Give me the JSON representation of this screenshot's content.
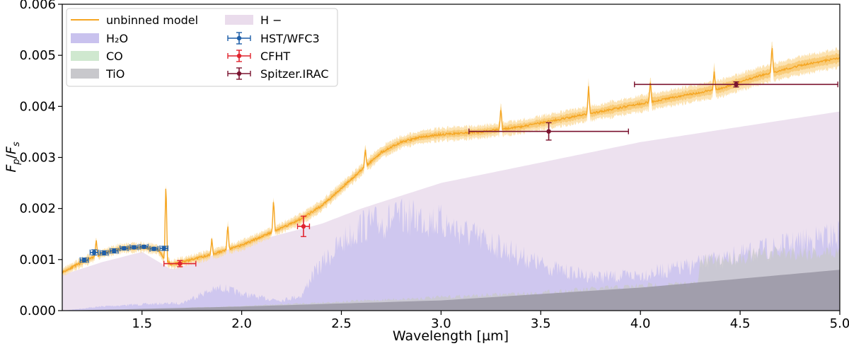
{
  "chart_data": {
    "type": "line",
    "xlabel": "Wavelength [µm]",
    "ylabel": "F_p/F_s",
    "xlim": [
      1.1,
      5.0
    ],
    "ylim": [
      0.0,
      0.006
    ],
    "xticks": [
      1.5,
      2.0,
      2.5,
      3.0,
      3.5,
      4.0,
      4.5,
      5.0
    ],
    "xtick_labels": [
      "1.5",
      "2.0",
      "2.5",
      "3.0",
      "3.5",
      "4.0",
      "4.5",
      "5.0"
    ],
    "yticks": [
      0.0,
      0.001,
      0.002,
      0.003,
      0.004,
      0.005,
      0.006
    ],
    "ytick_labels": [
      "0.000",
      "0.001",
      "0.002",
      "0.003",
      "0.004",
      "0.005",
      "0.006"
    ],
    "legend_position": "top-left",
    "legend": [
      {
        "key": "model",
        "label": "unbinned model",
        "kind": "line",
        "color": "#f5a623"
      },
      {
        "key": "h2o",
        "label": "H₂O",
        "kind": "patch",
        "color": "#c9c2ee"
      },
      {
        "key": "co",
        "label": "CO",
        "kind": "patch",
        "color": "#cfe8cf"
      },
      {
        "key": "tio",
        "label": "TiO",
        "kind": "patch",
        "color": "#c8c8cc"
      },
      {
        "key": "hminus",
        "label": "H −",
        "kind": "patch",
        "color": "#eadcec"
      },
      {
        "key": "hst",
        "label": "HST/WFC3",
        "kind": "errorbar",
        "color": "#1f5fa8"
      },
      {
        "key": "cfht",
        "label": "CFHT",
        "kind": "errorbar",
        "color": "#e0242e"
      },
      {
        "key": "spitzer",
        "label": "Spitzer.IRAC",
        "kind": "errorbar",
        "color": "#7b1430"
      }
    ],
    "series": {
      "model": {
        "name": "unbinned model",
        "color": "#f5a623",
        "x": [
          1.1,
          1.2,
          1.3,
          1.4,
          1.5,
          1.58,
          1.62,
          1.65,
          1.75,
          1.85,
          2.0,
          2.1,
          2.2,
          2.3,
          2.4,
          2.5,
          2.6,
          2.7,
          2.8,
          2.9,
          3.0,
          3.2,
          3.4,
          3.6,
          3.8,
          4.0,
          4.2,
          4.4,
          4.6,
          4.8,
          5.0
        ],
        "y": [
          0.00075,
          0.00095,
          0.00112,
          0.00122,
          0.00124,
          0.0012,
          0.00098,
          0.0009,
          0.001,
          0.0011,
          0.00128,
          0.00145,
          0.00162,
          0.0018,
          0.00205,
          0.0024,
          0.00275,
          0.0031,
          0.0033,
          0.0034,
          0.00345,
          0.0035,
          0.0036,
          0.00375,
          0.0039,
          0.00405,
          0.0042,
          0.00435,
          0.0046,
          0.0048,
          0.00495
        ],
        "spikes": [
          {
            "x": 1.27,
            "y": 0.0014
          },
          {
            "x": 1.62,
            "y": 0.0026
          },
          {
            "x": 1.85,
            "y": 0.0014
          },
          {
            "x": 1.93,
            "y": 0.0017
          },
          {
            "x": 2.16,
            "y": 0.0022
          },
          {
            "x": 2.62,
            "y": 0.0032
          },
          {
            "x": 3.3,
            "y": 0.004
          },
          {
            "x": 3.74,
            "y": 0.0044
          },
          {
            "x": 4.05,
            "y": 0.0045
          },
          {
            "x": 4.37,
            "y": 0.0047
          },
          {
            "x": 4.66,
            "y": 0.0052
          }
        ]
      },
      "hminus": {
        "name": "H −",
        "color": "#eadcec",
        "x": [
          1.1,
          1.3,
          1.5,
          1.65,
          1.8,
          2.0,
          2.2,
          2.4,
          2.6,
          3.0,
          3.5,
          4.0,
          4.5,
          5.0
        ],
        "y": [
          0.0007,
          0.00095,
          0.00115,
          0.0008,
          0.001,
          0.0013,
          0.0015,
          0.0017,
          0.002,
          0.0025,
          0.0029,
          0.0033,
          0.0036,
          0.0039
        ]
      },
      "h2o": {
        "name": "H₂O",
        "color": "#c9c2ee",
        "x": [
          1.1,
          1.3,
          1.5,
          1.7,
          1.8,
          1.9,
          2.0,
          2.1,
          2.2,
          2.3,
          2.35,
          2.4,
          2.5,
          2.6,
          2.7,
          2.8,
          2.9,
          3.0,
          3.1,
          3.2,
          3.3,
          3.4,
          3.5,
          3.6,
          3.7,
          3.8,
          3.9,
          4.0,
          4.2,
          4.4,
          4.6,
          4.8,
          5.0
        ],
        "y": [
          0.0,
          0.0001,
          0.00015,
          0.00018,
          0.0004,
          0.00055,
          0.0004,
          0.0003,
          0.00025,
          0.00035,
          0.0008,
          0.0011,
          0.0016,
          0.002,
          0.0021,
          0.0022,
          0.0022,
          0.0021,
          0.0019,
          0.0017,
          0.0015,
          0.0013,
          0.0011,
          0.00095,
          0.00085,
          0.0008,
          0.0008,
          0.00085,
          0.001,
          0.0012,
          0.0014,
          0.0016,
          0.0018
        ]
      },
      "tio": {
        "name": "TiO",
        "color": "#c8c8cc",
        "x": [
          1.1,
          1.5,
          2.0,
          2.5,
          3.0,
          3.5,
          4.0,
          4.29,
          4.3,
          4.5,
          4.7,
          4.9,
          5.0
        ],
        "y": [
          0.0,
          3e-05,
          0.0001,
          0.0002,
          0.0003,
          0.0004,
          0.00055,
          0.0006,
          0.0011,
          0.0012,
          0.0013,
          0.0013,
          0.0013
        ]
      },
      "tio_base": {
        "name": "TiO floor",
        "color": "#9a96a4",
        "x": [
          1.1,
          2.0,
          3.0,
          4.0,
          5.0
        ],
        "y": [
          0.0,
          8e-05,
          0.0002,
          0.00045,
          0.0008
        ]
      },
      "hst": {
        "name": "HST/WFC3",
        "color": "#1f5fa8",
        "points": [
          {
            "x": 1.21,
            "y": 0.00099,
            "xerr": 0.02,
            "yerr": 4e-05
          },
          {
            "x": 1.26,
            "y": 0.00114,
            "xerr": 0.02,
            "yerr": 5e-05
          },
          {
            "x": 1.31,
            "y": 0.00113,
            "xerr": 0.02,
            "yerr": 4e-05
          },
          {
            "x": 1.36,
            "y": 0.00117,
            "xerr": 0.02,
            "yerr": 4e-05
          },
          {
            "x": 1.41,
            "y": 0.00122,
            "xerr": 0.02,
            "yerr": 3e-05
          },
          {
            "x": 1.46,
            "y": 0.00124,
            "xerr": 0.02,
            "yerr": 3e-05
          },
          {
            "x": 1.51,
            "y": 0.00125,
            "xerr": 0.02,
            "yerr": 3e-05
          },
          {
            "x": 1.56,
            "y": 0.00121,
            "xerr": 0.02,
            "yerr": 3e-05
          },
          {
            "x": 1.61,
            "y": 0.00122,
            "xerr": 0.02,
            "yerr": 4e-05
          }
        ]
      },
      "cfht": {
        "name": "CFHT",
        "color": "#e0242e",
        "points": [
          {
            "x": 1.69,
            "y": 0.00092,
            "xerr": 0.08,
            "yerr": 6e-05
          },
          {
            "x": 2.31,
            "y": 0.00165,
            "xerr": 0.03,
            "yerr": 0.0002
          }
        ]
      },
      "spitzer": {
        "name": "Spitzer.IRAC",
        "color": "#7b1430",
        "points": [
          {
            "x": 3.54,
            "y": 0.00351,
            "xerr": 0.4,
            "yerr": 0.00017
          },
          {
            "x": 4.48,
            "y": 0.00443,
            "xerr": 0.51,
            "yerr": 5e-05
          }
        ]
      }
    }
  }
}
